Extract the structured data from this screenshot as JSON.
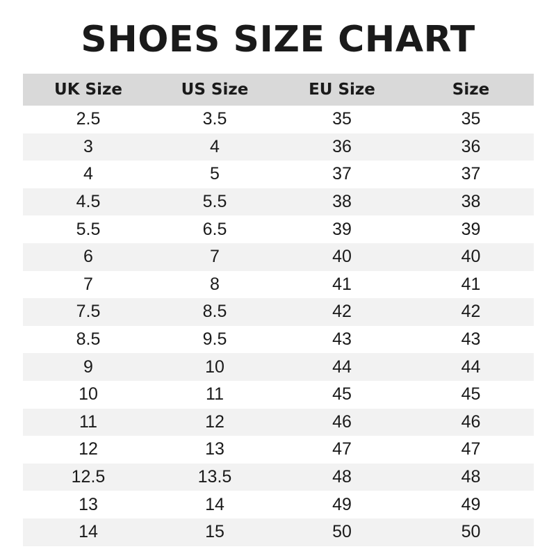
{
  "title": "SHOES SIZE CHART",
  "chart_data": {
    "type": "table",
    "title": "SHOES SIZE CHART",
    "columns": [
      "UK Size",
      "US Size",
      "EU Size",
      "Size"
    ],
    "rows": [
      [
        "2.5",
        "3.5",
        "35",
        "35"
      ],
      [
        "3",
        "4",
        "36",
        "36"
      ],
      [
        "4",
        "5",
        "37",
        "37"
      ],
      [
        "4.5",
        "5.5",
        "38",
        "38"
      ],
      [
        "5.5",
        "6.5",
        "39",
        "39"
      ],
      [
        "6",
        "7",
        "40",
        "40"
      ],
      [
        "7",
        "8",
        "41",
        "41"
      ],
      [
        "7.5",
        "8.5",
        "42",
        "42"
      ],
      [
        "8.5",
        "9.5",
        "43",
        "43"
      ],
      [
        "9",
        "10",
        "44",
        "44"
      ],
      [
        "10",
        "11",
        "45",
        "45"
      ],
      [
        "11",
        "12",
        "46",
        "46"
      ],
      [
        "12",
        "13",
        "47",
        "47"
      ],
      [
        "12.5",
        "13.5",
        "48",
        "48"
      ],
      [
        "13",
        "14",
        "49",
        "49"
      ],
      [
        "14",
        "15",
        "50",
        "50"
      ]
    ],
    "colors": {
      "header_bg": "#d9d9d9",
      "stripe_bg": "#f2f2f2",
      "text": "#1a1a1a"
    }
  }
}
